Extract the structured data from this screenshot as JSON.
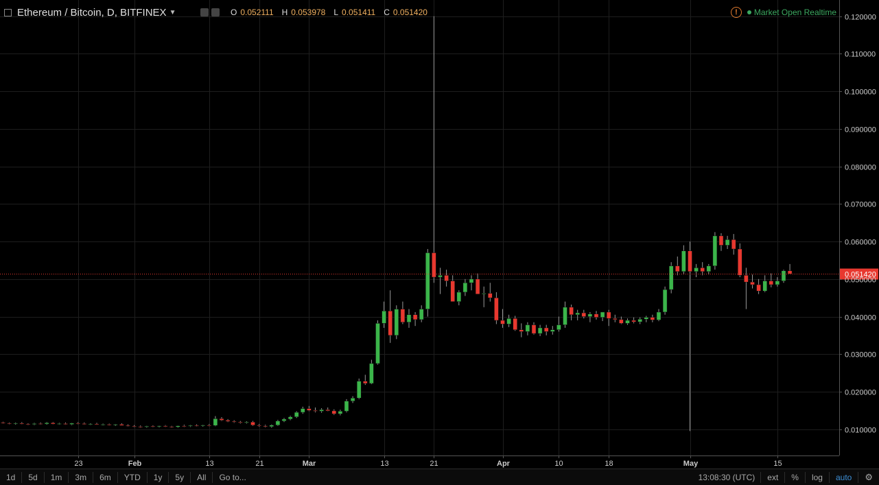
{
  "header": {
    "symbol": "Ethereum / Bitcoin, D, BITFINEX",
    "ohlc": {
      "o_label": "O",
      "o": "0.052111",
      "h_label": "H",
      "h": "0.053978",
      "l_label": "L",
      "l": "0.051411",
      "c_label": "C",
      "c": "0.051420"
    },
    "market_status": "Market Open",
    "feed": "Realtime"
  },
  "toolbar": {
    "ranges": [
      "1d",
      "5d",
      "1m",
      "3m",
      "6m",
      "YTD",
      "1y",
      "5y",
      "All"
    ],
    "goto_label": "Go to...",
    "time": "13:08:30 (UTC)",
    "ext_label": "ext",
    "percent_label": "%",
    "log_label": "log",
    "auto_label": "auto"
  },
  "colors": {
    "up": "#3bb54a",
    "down": "#e8382f",
    "grid": "#1e1e1e",
    "last_price": "#e8382f",
    "background": "#000000"
  },
  "chart_data": {
    "type": "candlestick",
    "y_ticks": [
      "0.010000",
      "0.020000",
      "0.030000",
      "0.040000",
      "0.050000",
      "0.060000",
      "0.070000",
      "0.080000",
      "0.090000",
      "0.100000",
      "0.110000",
      "0.120000"
    ],
    "ylim": [
      0.003,
      0.1225
    ],
    "x_ticks": [
      {
        "label": "23",
        "bold": false,
        "index": 12
      },
      {
        "label": "Feb",
        "bold": true,
        "index": 21
      },
      {
        "label": "13",
        "bold": false,
        "index": 33
      },
      {
        "label": "21",
        "bold": false,
        "index": 41
      },
      {
        "label": "Mar",
        "bold": true,
        "index": 49
      },
      {
        "label": "13",
        "bold": false,
        "index": 61
      },
      {
        "label": "21",
        "bold": false,
        "index": 69
      },
      {
        "label": "Apr",
        "bold": true,
        "index": 80
      },
      {
        "label": "10",
        "bold": false,
        "index": 89
      },
      {
        "label": "18",
        "bold": false,
        "index": 97
      },
      {
        "label": "May",
        "bold": true,
        "index": 110
      },
      {
        "label": "15",
        "bold": false,
        "index": 124
      }
    ],
    "last_price": "0.051420",
    "candles": [
      [
        0.0118,
        0.012,
        0.0115,
        0.0116
      ],
      [
        0.0116,
        0.0118,
        0.0113,
        0.0115
      ],
      [
        0.0115,
        0.0118,
        0.0112,
        0.0116
      ],
      [
        0.0116,
        0.0119,
        0.0113,
        0.0114
      ],
      [
        0.0114,
        0.0116,
        0.0111,
        0.0113
      ],
      [
        0.0113,
        0.0117,
        0.0111,
        0.0115
      ],
      [
        0.0115,
        0.0118,
        0.0112,
        0.0114
      ],
      [
        0.0114,
        0.0119,
        0.0112,
        0.0117
      ],
      [
        0.0117,
        0.0119,
        0.0113,
        0.0114
      ],
      [
        0.0114,
        0.0117,
        0.0112,
        0.0115
      ],
      [
        0.0115,
        0.0118,
        0.0112,
        0.0113
      ],
      [
        0.0113,
        0.0117,
        0.0111,
        0.0116
      ],
      [
        0.0116,
        0.0119,
        0.0113,
        0.0115
      ],
      [
        0.0115,
        0.0118,
        0.0112,
        0.0113
      ],
      [
        0.0113,
        0.0116,
        0.0111,
        0.0114
      ],
      [
        0.0114,
        0.0117,
        0.0112,
        0.0112
      ],
      [
        0.0112,
        0.0115,
        0.011,
        0.0113
      ],
      [
        0.0113,
        0.0115,
        0.011,
        0.0111
      ],
      [
        0.0111,
        0.0114,
        0.0109,
        0.0113
      ],
      [
        0.0113,
        0.0116,
        0.011,
        0.011
      ],
      [
        0.011,
        0.0113,
        0.0107,
        0.0108
      ],
      [
        0.0108,
        0.0111,
        0.0105,
        0.0107
      ],
      [
        0.0107,
        0.011,
        0.0104,
        0.0106
      ],
      [
        0.0106,
        0.0109,
        0.0104,
        0.0108
      ],
      [
        0.0108,
        0.011,
        0.0105,
        0.0107
      ],
      [
        0.0107,
        0.011,
        0.0105,
        0.0109
      ],
      [
        0.0109,
        0.0111,
        0.0106,
        0.0107
      ],
      [
        0.0107,
        0.0109,
        0.0104,
        0.0106
      ],
      [
        0.0106,
        0.011,
        0.0104,
        0.0109
      ],
      [
        0.0109,
        0.0112,
        0.0106,
        0.0108
      ],
      [
        0.0108,
        0.0111,
        0.0106,
        0.011
      ],
      [
        0.011,
        0.0113,
        0.0107,
        0.0109
      ],
      [
        0.0109,
        0.0112,
        0.0107,
        0.0111
      ],
      [
        0.0111,
        0.0114,
        0.0108,
        0.011
      ],
      [
        0.011,
        0.0135,
        0.0108,
        0.0128
      ],
      [
        0.0128,
        0.0132,
        0.0122,
        0.0124
      ],
      [
        0.0124,
        0.0127,
        0.0119,
        0.0121
      ],
      [
        0.0121,
        0.0124,
        0.0117,
        0.0119
      ],
      [
        0.0119,
        0.0122,
        0.0115,
        0.0117
      ],
      [
        0.0117,
        0.0121,
        0.0115,
        0.0119
      ],
      [
        0.0119,
        0.0122,
        0.0109,
        0.0111
      ],
      [
        0.0111,
        0.0114,
        0.0107,
        0.0109
      ],
      [
        0.0109,
        0.0112,
        0.0105,
        0.0107
      ],
      [
        0.0107,
        0.0113,
        0.0104,
        0.0111
      ],
      [
        0.0111,
        0.0125,
        0.0109,
        0.0122
      ],
      [
        0.0122,
        0.013,
        0.0119,
        0.0127
      ],
      [
        0.0127,
        0.0136,
        0.0124,
        0.0133
      ],
      [
        0.0133,
        0.0148,
        0.013,
        0.0145
      ],
      [
        0.0145,
        0.016,
        0.0141,
        0.0155
      ],
      [
        0.0155,
        0.0162,
        0.0148,
        0.015
      ],
      [
        0.015,
        0.0158,
        0.0145,
        0.0148
      ],
      [
        0.0148,
        0.0156,
        0.0144,
        0.0152
      ],
      [
        0.0152,
        0.0158,
        0.0148,
        0.0149
      ],
      [
        0.0149,
        0.0153,
        0.0138,
        0.0141
      ],
      [
        0.0141,
        0.0152,
        0.0137,
        0.0148
      ],
      [
        0.0148,
        0.018,
        0.0145,
        0.0175
      ],
      [
        0.0175,
        0.0188,
        0.017,
        0.0183
      ],
      [
        0.0183,
        0.0235,
        0.018,
        0.0228
      ],
      [
        0.0228,
        0.0245,
        0.0218,
        0.0222
      ],
      [
        0.0222,
        0.0285,
        0.022,
        0.0275
      ],
      [
        0.0275,
        0.039,
        0.0272,
        0.0382
      ],
      [
        0.0382,
        0.044,
        0.037,
        0.0415
      ],
      [
        0.0415,
        0.047,
        0.033,
        0.035
      ],
      [
        0.035,
        0.043,
        0.034,
        0.042
      ],
      [
        0.042,
        0.044,
        0.038,
        0.0385
      ],
      [
        0.0385,
        0.042,
        0.037,
        0.0405
      ],
      [
        0.0405,
        0.0412,
        0.0375,
        0.0392
      ],
      [
        0.0392,
        0.043,
        0.0385,
        0.042
      ],
      [
        0.042,
        0.058,
        0.04,
        0.057
      ],
      [
        0.057,
        0.12,
        0.049,
        0.0505
      ],
      [
        0.0505,
        0.053,
        0.046,
        0.051
      ],
      [
        0.051,
        0.0525,
        0.048,
        0.0495
      ],
      [
        0.0495,
        0.051,
        0.044,
        0.044
      ],
      [
        0.044,
        0.047,
        0.043,
        0.0465
      ],
      [
        0.0465,
        0.05,
        0.0455,
        0.049
      ],
      [
        0.049,
        0.051,
        0.047,
        0.05
      ],
      [
        0.05,
        0.0515,
        0.046,
        0.046
      ],
      [
        0.046,
        0.048,
        0.0425,
        0.0462
      ],
      [
        0.0462,
        0.049,
        0.044,
        0.045
      ],
      [
        0.045,
        0.0465,
        0.038,
        0.039
      ],
      [
        0.039,
        0.042,
        0.037,
        0.038
      ],
      [
        0.038,
        0.0405,
        0.0372,
        0.0395
      ],
      [
        0.0395,
        0.0402,
        0.0362,
        0.0365
      ],
      [
        0.0365,
        0.0382,
        0.0345,
        0.036
      ],
      [
        0.036,
        0.0385,
        0.035,
        0.0378
      ],
      [
        0.0378,
        0.0385,
        0.0352,
        0.0355
      ],
      [
        0.0355,
        0.0378,
        0.0348,
        0.037
      ],
      [
        0.037,
        0.0378,
        0.035,
        0.036
      ],
      [
        0.036,
        0.0375,
        0.0352,
        0.0365
      ],
      [
        0.0365,
        0.04,
        0.036,
        0.0378
      ],
      [
        0.0378,
        0.044,
        0.037,
        0.0425
      ],
      [
        0.0425,
        0.0432,
        0.039,
        0.0405
      ],
      [
        0.0405,
        0.0418,
        0.039,
        0.041
      ],
      [
        0.041,
        0.0418,
        0.0395,
        0.04
      ],
      [
        0.04,
        0.0412,
        0.0385,
        0.0407
      ],
      [
        0.0407,
        0.0415,
        0.0392,
        0.0398
      ],
      [
        0.0398,
        0.0412,
        0.0388,
        0.0412
      ],
      [
        0.0412,
        0.0418,
        0.0375,
        0.0395
      ],
      [
        0.0395,
        0.0405,
        0.0385,
        0.0392
      ],
      [
        0.0392,
        0.04,
        0.038,
        0.0382
      ],
      [
        0.0382,
        0.0395,
        0.0378,
        0.039
      ],
      [
        0.039,
        0.0398,
        0.0382,
        0.0386
      ],
      [
        0.0386,
        0.0398,
        0.038,
        0.0393
      ],
      [
        0.0393,
        0.0402,
        0.0385,
        0.0398
      ],
      [
        0.0398,
        0.0405,
        0.0385,
        0.0391
      ],
      [
        0.0391,
        0.042,
        0.0388,
        0.0412
      ],
      [
        0.0412,
        0.048,
        0.0405,
        0.0472
      ],
      [
        0.0472,
        0.0545,
        0.0462,
        0.0535
      ],
      [
        0.0535,
        0.056,
        0.051,
        0.052
      ],
      [
        0.052,
        0.059,
        0.0512,
        0.0575
      ],
      [
        0.0575,
        0.06,
        0.0095,
        0.052
      ],
      [
        0.052,
        0.054,
        0.0505,
        0.053
      ],
      [
        0.053,
        0.0545,
        0.051,
        0.052
      ],
      [
        0.052,
        0.054,
        0.0512,
        0.0535
      ],
      [
        0.0535,
        0.0625,
        0.0525,
        0.0615
      ],
      [
        0.0615,
        0.0622,
        0.0575,
        0.059
      ],
      [
        0.059,
        0.0615,
        0.058,
        0.0605
      ],
      [
        0.0605,
        0.062,
        0.0565,
        0.058
      ],
      [
        0.058,
        0.0595,
        0.0505,
        0.051
      ],
      [
        0.051,
        0.053,
        0.042,
        0.0492
      ],
      [
        0.0492,
        0.0512,
        0.0475,
        0.0485
      ],
      [
        0.0485,
        0.05,
        0.046,
        0.0468
      ],
      [
        0.0468,
        0.051,
        0.0465,
        0.0495
      ],
      [
        0.0495,
        0.0515,
        0.0478,
        0.0485
      ],
      [
        0.0485,
        0.0505,
        0.048,
        0.0495
      ],
      [
        0.0495,
        0.0525,
        0.049,
        0.0522
      ],
      [
        0.0522,
        0.054,
        0.0514,
        0.0514
      ]
    ]
  }
}
